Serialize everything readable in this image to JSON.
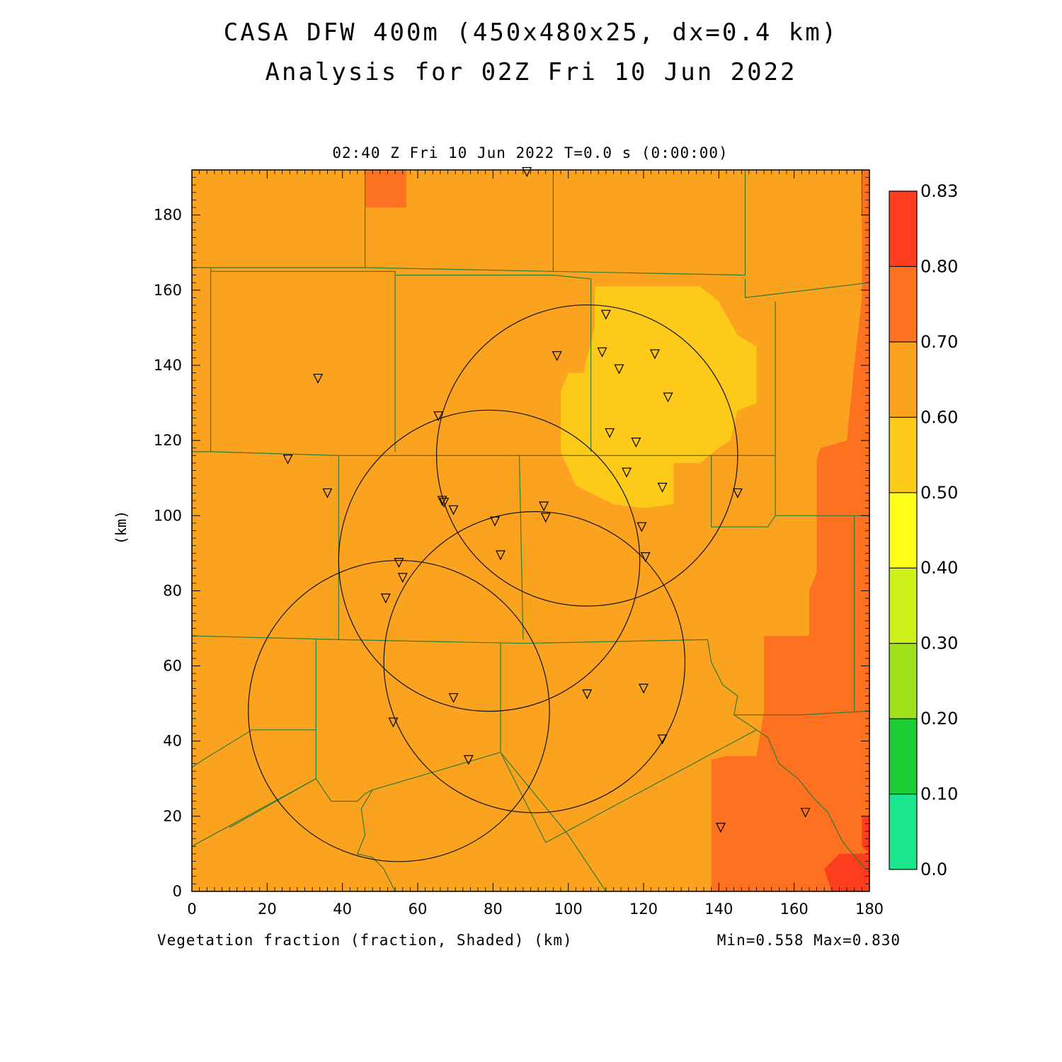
{
  "title_line1": "CASA DFW 400m (450x480x25, dx=0.4 km)",
  "title_line2": "Analysis for 02Z Fri 10 Jun 2022",
  "subtitle": "02:40 Z Fri 10 Jun 2022    T=0.0 s (0:00:00)",
  "footer_left": "Vegetation fraction (fraction, Shaded)  (km)",
  "footer_right": "Min=0.558 Max=0.830",
  "axes": {
    "x_label": "",
    "y_label": "(km)",
    "x_range": [
      0,
      180
    ],
    "y_range": [
      0,
      192
    ],
    "x_ticks": [
      0,
      20,
      40,
      60,
      80,
      100,
      120,
      140,
      160,
      180
    ],
    "y_ticks": [
      0,
      20,
      40,
      60,
      80,
      100,
      120,
      140,
      160,
      180
    ]
  },
  "colorbar": {
    "levels": [
      "0.0",
      "0.10",
      "0.20",
      "0.30",
      "0.40",
      "0.50",
      "0.60",
      "0.70",
      "0.80",
      "0.83"
    ],
    "colors": [
      "#19e68c",
      "#1ccc34",
      "#9ee01a",
      "#ccf21a",
      "#ffff1a",
      "#fdca1a",
      "#fba21e",
      "#fd7120",
      "#fe3c1e"
    ]
  },
  "radar_rings_km": [
    {
      "cx": 105,
      "cy": 116,
      "r": 40
    },
    {
      "cx": 79,
      "cy": 88,
      "r": 40
    },
    {
      "cx": 91,
      "cy": 61,
      "r": 40
    },
    {
      "cx": 55,
      "cy": 48,
      "r": 40
    }
  ],
  "stations_km": [
    [
      89,
      191.5
    ],
    [
      110,
      153.5
    ],
    [
      97,
      142.5
    ],
    [
      109,
      143.5
    ],
    [
      123,
      143
    ],
    [
      113.5,
      139
    ],
    [
      126.5,
      131.5
    ],
    [
      33.5,
      136.5
    ],
    [
      65.5,
      126.5
    ],
    [
      111,
      122
    ],
    [
      118,
      119.5
    ],
    [
      25.5,
      115
    ],
    [
      115.5,
      111.5
    ],
    [
      125,
      107.5
    ],
    [
      36,
      106
    ],
    [
      145,
      106
    ],
    [
      66.5,
      104
    ],
    [
      67,
      103.5
    ],
    [
      69.5,
      101.5
    ],
    [
      93.5,
      102.5
    ],
    [
      94,
      99.5
    ],
    [
      80.5,
      98.5
    ],
    [
      119.5,
      97
    ],
    [
      82,
      89.5
    ],
    [
      120.5,
      89
    ],
    [
      55,
      87.5
    ],
    [
      56,
      83.5
    ],
    [
      51.5,
      78
    ],
    [
      105,
      52.5
    ],
    [
      120,
      54
    ],
    [
      69.5,
      51.5
    ],
    [
      53.5,
      45
    ],
    [
      125,
      40.5
    ],
    [
      73.5,
      35
    ],
    [
      140.5,
      17
    ],
    [
      163,
      21
    ]
  ],
  "chart_data": {
    "type": "heatmap",
    "title": "CASA DFW 400m (450x480x25, dx=0.4 km)",
    "subtitle": "Analysis for 02Z Fri 10 Jun 2022",
    "field": "Vegetation fraction (fraction, Shaded)",
    "xlabel": "",
    "ylabel": "(km)",
    "xlim": [
      0,
      180
    ],
    "ylim": [
      0,
      192
    ],
    "min": 0.558,
    "max": 0.83,
    "contour_levels": [
      0.0,
      0.1,
      0.2,
      0.3,
      0.4,
      0.5,
      0.6,
      0.7,
      0.8,
      0.83
    ],
    "regions": [
      {
        "class": "0.60-0.70",
        "description": "background field over most of domain"
      },
      {
        "class": "0.50-0.60",
        "polygon_km": [
          [
            107,
            161
          ],
          [
            135,
            161
          ],
          [
            140,
            157
          ],
          [
            145,
            148
          ],
          [
            150,
            145
          ],
          [
            150,
            130
          ],
          [
            145,
            128
          ],
          [
            143,
            120
          ],
          [
            140,
            118
          ],
          [
            135,
            114
          ],
          [
            128,
            114
          ],
          [
            128,
            103
          ],
          [
            120,
            102
          ],
          [
            112,
            103
          ],
          [
            102,
            108
          ],
          [
            98,
            117
          ],
          [
            98,
            133
          ],
          [
            100,
            138
          ],
          [
            104,
            138
          ],
          [
            107,
            150
          ]
        ]
      },
      {
        "class": "0.70-0.80",
        "polygon_km": [
          [
            46,
            192
          ],
          [
            57,
            192
          ],
          [
            57,
            182
          ],
          [
            46,
            182
          ]
        ]
      },
      {
        "class": "0.70-0.80",
        "polygon_km": [
          [
            178,
            192
          ],
          [
            180,
            192
          ],
          [
            180,
            0
          ],
          [
            138,
            0
          ],
          [
            138,
            35
          ],
          [
            142,
            36
          ],
          [
            150,
            36
          ],
          [
            152,
            48
          ],
          [
            152,
            68
          ],
          [
            156,
            68
          ],
          [
            164,
            68
          ],
          [
            164,
            80
          ],
          [
            166,
            85
          ],
          [
            166,
            100
          ],
          [
            166,
            115
          ],
          [
            167,
            118
          ],
          [
            174,
            120
          ],
          [
            176,
            140
          ],
          [
            178,
            158
          ],
          [
            178,
            180
          ]
        ]
      },
      {
        "class": "0.80-0.83",
        "polygon_km": [
          [
            170,
            0
          ],
          [
            180,
            0
          ],
          [
            180,
            10
          ],
          [
            172,
            10
          ],
          [
            168,
            6
          ]
        ]
      },
      {
        "class": "0.80-0.83",
        "polygon_km": [
          [
            178,
            20
          ],
          [
            180,
            20
          ],
          [
            180,
            10
          ],
          [
            178,
            12
          ]
        ]
      }
    ]
  }
}
